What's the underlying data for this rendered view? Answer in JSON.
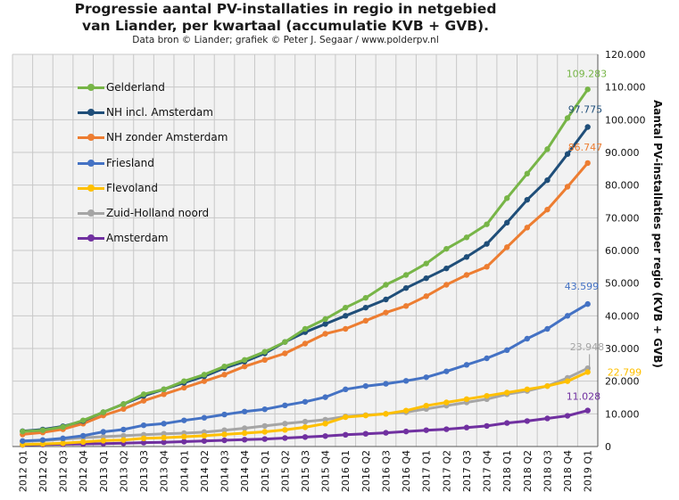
{
  "header": {
    "title_line1": "Progressie aantal PV-installaties  in regio in netgebied",
    "title_line2": "van Liander, per kwartaal (accumulatie  KVB + GVB).",
    "subtitle": "Data bron © Liander; grafiek © Peter J. Segaar / www.polderpv.nl"
  },
  "chart_data": {
    "type": "line",
    "title": "Progressie aantal PV-installaties  in regio in netgebied van Liander, per kwartaal (accumulatie  KVB + GVB).",
    "subtitle": "Data bron © Liander; grafiek © Peter J. Segaar / www.polderpv.nl",
    "xlabel": "",
    "ylabel": "Aantal PV-installaties  per regio  (KVB + GVB)",
    "ylim": [
      0,
      120000
    ],
    "y_axis_side": "right",
    "grid": true,
    "legend_position": "top-left",
    "y_ticks": [
      "0",
      "10.000",
      "20.000",
      "30.000",
      "40.000",
      "50.000",
      "60.000",
      "70.000",
      "80.000",
      "90.000",
      "100.000",
      "110.000",
      "120.000"
    ],
    "categories": [
      "2012 Q1",
      "2012 Q2",
      "2012 Q3",
      "2012 Q4",
      "2013 Q1",
      "2013 Q2",
      "2013 Q3",
      "2013 Q4",
      "2014 Q1",
      "2014 Q2",
      "2014 Q3",
      "2014 Q4",
      "2015 Q1",
      "2015 Q2",
      "2015 Q3",
      "2015 Q4",
      "2016 Q1",
      "2016 Q2",
      "2016 Q3",
      "2016 Q4",
      "2017 Q1",
      "2017 Q2",
      "2017 Q3",
      "2017 Q4",
      "2018 Q1",
      "2018 Q2",
      "2018 Q3",
      "2018 Q4",
      "2019 Q1"
    ],
    "series": [
      {
        "name": "Gelderland",
        "color": "#77b547",
        "values": [
          4600,
          5000,
          6000,
          8000,
          10500,
          13000,
          16000,
          17500,
          20000,
          22000,
          24500,
          26500,
          29000,
          32000,
          36000,
          39000,
          42500,
          45500,
          49500,
          52500,
          56000,
          60500,
          64000,
          68000,
          76000,
          83500,
          91000,
          100500,
          109283
        ],
        "end_label": "109.283"
      },
      {
        "name": "NH incl. Amsterdam",
        "color": "#1f4e79",
        "values": [
          4700,
          5200,
          6200,
          7800,
          10500,
          13000,
          15500,
          17500,
          19500,
          21500,
          24000,
          26000,
          28500,
          32000,
          35000,
          37500,
          40000,
          42500,
          45000,
          48500,
          51500,
          54500,
          58000,
          62000,
          68500,
          75500,
          81500,
          89500,
          97775
        ],
        "end_label": "97.775"
      },
      {
        "name": "NH zonder Amsterdam",
        "color": "#ed7d31",
        "values": [
          3700,
          4300,
          5300,
          7000,
          9500,
          11500,
          14000,
          16000,
          18000,
          20000,
          22000,
          24500,
          26500,
          28500,
          31500,
          34500,
          36000,
          38500,
          41000,
          43000,
          46000,
          49500,
          52500,
          55000,
          61000,
          67000,
          72500,
          79500,
          86747
        ],
        "end_label": "86.747"
      },
      {
        "name": "Friesland",
        "color": "#4472c4",
        "values": [
          1700,
          2000,
          2500,
          3300,
          4500,
          5200,
          6500,
          7000,
          8000,
          8800,
          9800,
          10700,
          11400,
          12600,
          13700,
          15100,
          17500,
          18500,
          19200,
          20100,
          21200,
          23000,
          25000,
          27000,
          29500,
          33000,
          36000,
          40000,
          43599
        ],
        "end_label": "43.599"
      },
      {
        "name": "Flevoland",
        "color": "#ffc000",
        "values": [
          600,
          800,
          1000,
          1400,
          1800,
          2000,
          2500,
          2700,
          3000,
          3300,
          3700,
          4100,
          4500,
          5100,
          5900,
          7000,
          9000,
          9500,
          10000,
          11000,
          12500,
          13500,
          14500,
          15500,
          16500,
          17500,
          18500,
          20000,
          22799
        ],
        "end_label": "22.799"
      },
      {
        "name": "Zuid-Holland noord",
        "color": "#a5a5a5",
        "values": [
          1500,
          1800,
          2200,
          2700,
          3000,
          3300,
          3600,
          3900,
          4100,
          4400,
          5000,
          5600,
          6300,
          7000,
          7600,
          8200,
          9200,
          9600,
          10000,
          10500,
          11500,
          12500,
          13500,
          14500,
          16000,
          17000,
          18500,
          21000,
          23948
        ],
        "end_label": "23.948"
      },
      {
        "name": "Amsterdam",
        "color": "#7030a0",
        "values": [
          500,
          600,
          700,
          800,
          900,
          1000,
          1200,
          1300,
          1500,
          1700,
          1900,
          2100,
          2300,
          2600,
          2900,
          3200,
          3600,
          3900,
          4200,
          4600,
          5000,
          5300,
          5800,
          6300,
          7200,
          7800,
          8600,
          9400,
          11028
        ],
        "end_label": "11.028"
      }
    ]
  }
}
